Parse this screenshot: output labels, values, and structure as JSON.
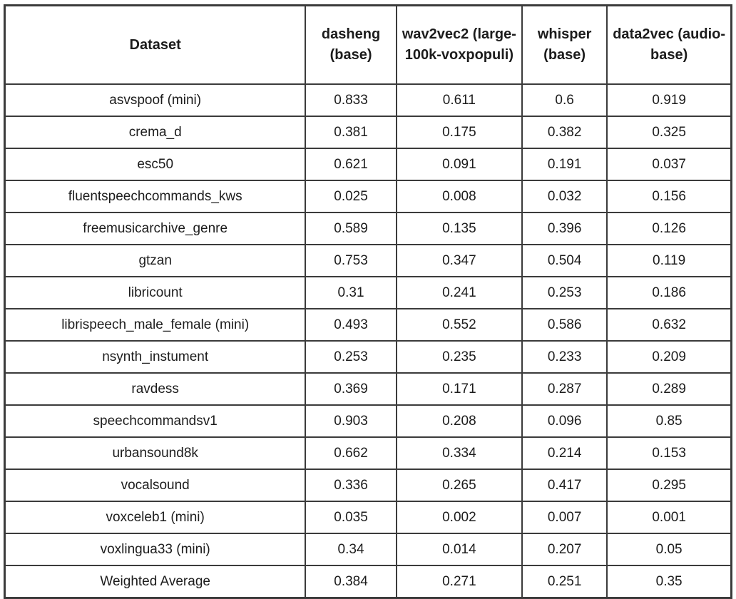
{
  "chart_data": {
    "type": "table",
    "title": "",
    "columns": [
      "Dataset",
      "dasheng (base)",
      "wav2vec2 (large-100k-voxpopuli)",
      "whisper (base)",
      "data2vec (audio-base)"
    ],
    "rows": [
      {
        "dataset": "asvspoof (mini)",
        "dataset_bold": false,
        "values": [
          "0.833",
          "0.611",
          "0.6",
          "0.919"
        ],
        "bold": [
          false,
          false,
          false,
          true
        ]
      },
      {
        "dataset": "crema_d",
        "dataset_bold": false,
        "values": [
          "0.381",
          "0.175",
          "0.382",
          "0.325"
        ],
        "bold": [
          false,
          false,
          true,
          false
        ]
      },
      {
        "dataset": "esc50",
        "dataset_bold": false,
        "values": [
          "0.621",
          "0.091",
          "0.191",
          "0.037"
        ],
        "bold": [
          true,
          false,
          false,
          false
        ]
      },
      {
        "dataset": "fluentspeechcommands_kws",
        "dataset_bold": false,
        "values": [
          "0.025",
          "0.008",
          "0.032",
          "0.156"
        ],
        "bold": [
          true,
          false,
          false,
          false
        ]
      },
      {
        "dataset": "freemusicarchive_genre",
        "dataset_bold": false,
        "values": [
          "0.589",
          "0.135",
          "0.396",
          "0.126"
        ],
        "bold": [
          true,
          false,
          false,
          false
        ]
      },
      {
        "dataset": "gtzan",
        "dataset_bold": false,
        "values": [
          "0.753",
          "0.347",
          "0.504",
          "0.119"
        ],
        "bold": [
          true,
          false,
          false,
          false
        ]
      },
      {
        "dataset": "libricount",
        "dataset_bold": false,
        "values": [
          "0.31",
          "0.241",
          "0.253",
          "0.186"
        ],
        "bold": [
          true,
          false,
          false,
          false
        ]
      },
      {
        "dataset": "librispeech_male_female (mini)",
        "dataset_bold": false,
        "values": [
          "0.493",
          "0.552",
          "0.586",
          "0.632"
        ],
        "bold": [
          false,
          false,
          false,
          true
        ]
      },
      {
        "dataset": "nsynth_instument",
        "dataset_bold": false,
        "values": [
          "0.253",
          "0.235",
          "0.233",
          "0.209"
        ],
        "bold": [
          true,
          false,
          false,
          false
        ]
      },
      {
        "dataset": "ravdess",
        "dataset_bold": false,
        "values": [
          "0.369",
          "0.171",
          "0.287",
          "0.289"
        ],
        "bold": [
          true,
          false,
          false,
          false
        ]
      },
      {
        "dataset": "speechcommandsv1",
        "dataset_bold": false,
        "values": [
          "0.903",
          "0.208",
          "0.096",
          "0.85"
        ],
        "bold": [
          true,
          false,
          false,
          false
        ]
      },
      {
        "dataset": "urbansound8k",
        "dataset_bold": false,
        "values": [
          "0.662",
          "0.334",
          "0.214",
          "0.153"
        ],
        "bold": [
          true,
          false,
          false,
          false
        ]
      },
      {
        "dataset": "vocalsound",
        "dataset_bold": false,
        "values": [
          "0.336",
          "0.265",
          "0.417",
          "0.295"
        ],
        "bold": [
          true,
          false,
          false,
          false
        ]
      },
      {
        "dataset": "voxceleb1 (mini)",
        "dataset_bold": false,
        "values": [
          "0.035",
          "0.002",
          "0.007",
          "0.001"
        ],
        "bold": [
          true,
          false,
          false,
          false
        ]
      },
      {
        "dataset": "voxlingua33 (mini)",
        "dataset_bold": false,
        "values": [
          "0.34",
          "0.014",
          "0.207",
          "0.05"
        ],
        "bold": [
          true,
          false,
          false,
          false
        ]
      },
      {
        "dataset": "Weighted Average",
        "dataset_bold": true,
        "values": [
          "0.384",
          "0.271",
          "0.251",
          "0.35"
        ],
        "bold": [
          true,
          false,
          false,
          false
        ]
      }
    ],
    "style": {
      "border_color": "#3b3b3b",
      "background": "#ffffff",
      "text_color": "#1c1c1c",
      "bold_meaning": "highlighted value in each row"
    }
  }
}
